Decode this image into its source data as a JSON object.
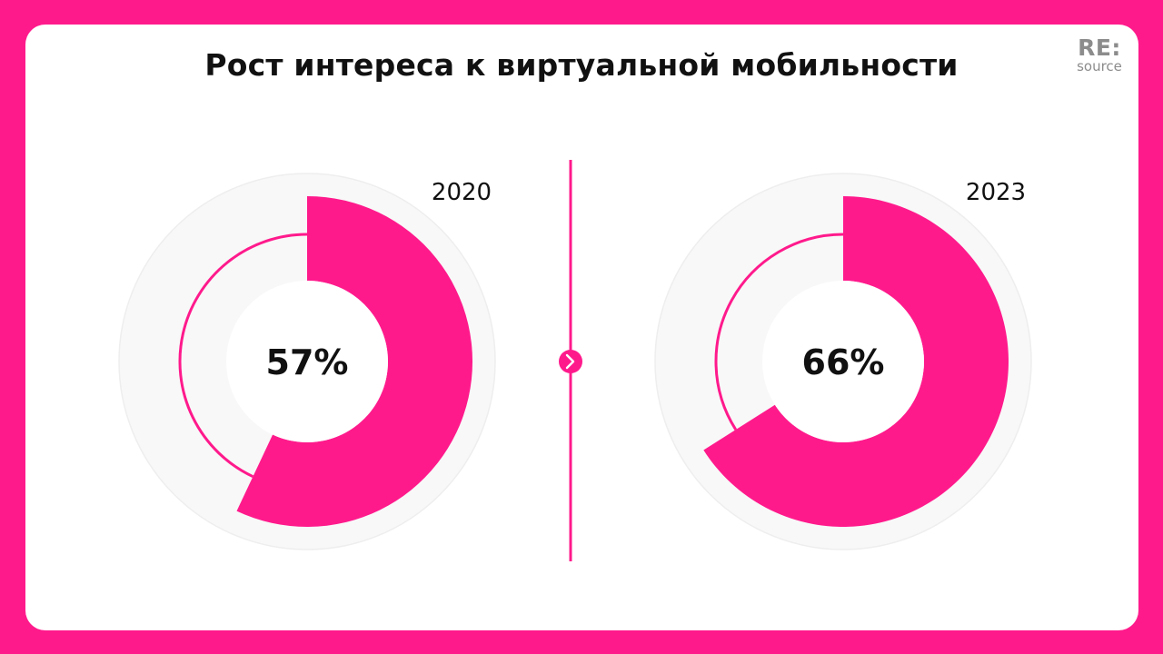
{
  "title": "Рост интереса к виртуальной мобильности",
  "logo": {
    "mark": "RE:",
    "sub": "source"
  },
  "colors": {
    "frame": "#FF1A8C",
    "accent": "#FF1A8C",
    "card": "#FFFFFF",
    "track": "#F8F8F8",
    "text": "#111111",
    "logo": "#8C8C8C"
  },
  "divider_icon": "chevron-right-icon",
  "chart_data": [
    {
      "type": "pie",
      "style": "donut",
      "year": "2020",
      "value": 57,
      "label": "57%"
    },
    {
      "type": "pie",
      "style": "donut",
      "year": "2023",
      "value": 66,
      "label": "66%"
    }
  ]
}
